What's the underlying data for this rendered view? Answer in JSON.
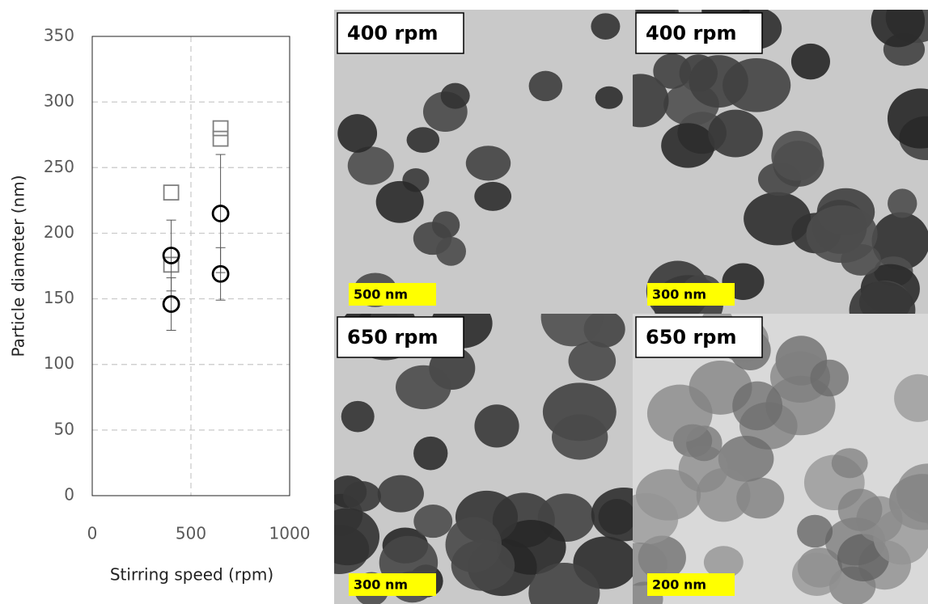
{
  "chart_data": {
    "type": "scatter",
    "xlabel": "Stirring speed (rpm)",
    "ylabel": "Particle diameter (nm)",
    "xlim": [
      0,
      1000
    ],
    "xticks": [
      0,
      500,
      1000
    ],
    "ylim": [
      0,
      350
    ],
    "yticks": [
      0,
      50,
      100,
      150,
      200,
      250,
      300,
      350
    ],
    "grid": true,
    "series": [
      {
        "marker": "square",
        "color": "#7f7f7f",
        "x": [
          400,
          400,
          650,
          650
        ],
        "values": [
          231,
          176,
          280,
          272
        ]
      },
      {
        "marker": "circle",
        "color": "#000000",
        "x": [
          400,
          400,
          650,
          650
        ],
        "values": [
          183,
          146,
          215,
          169
        ],
        "errors": [
          27,
          20,
          45,
          20
        ]
      }
    ]
  },
  "panels": [
    {
      "label": "400 rpm",
      "scale": "500 nm"
    },
    {
      "label": "400 rpm",
      "scale": "300 nm"
    },
    {
      "label": "650 rpm",
      "scale": "300 nm"
    },
    {
      "label": "650 rpm",
      "scale": "200 nm"
    }
  ]
}
